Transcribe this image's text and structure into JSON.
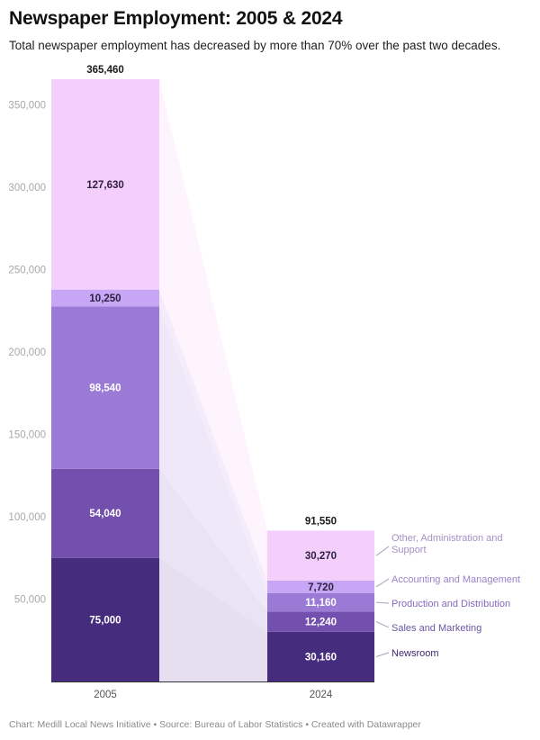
{
  "header": {
    "title": "Newspaper Employment: 2005 & 2024",
    "subtitle": "Total newspaper employment has decreased by more than 70% over the past two decades."
  },
  "footer": {
    "text": "Chart: Medill Local News Initiative • Source: Bureau of Labor Statistics • Created with Datawrapper"
  },
  "chart_data": {
    "type": "bar",
    "stacked": true,
    "title": "Newspaper Employment: 2005 & 2024",
    "subtitle": "Total newspaper employment has decreased by more than 70% over the past two decades.",
    "xlabel": "",
    "ylabel": "",
    "categories": [
      "2005",
      "2024"
    ],
    "totals": [
      365460,
      91550
    ],
    "total_labels": [
      "365,460",
      "91,550"
    ],
    "ylim": [
      0,
      370000
    ],
    "yticks": [
      50000,
      100000,
      150000,
      200000,
      250000,
      300000,
      350000
    ],
    "ytick_labels": [
      "50,000",
      "100,000",
      "150,000",
      "200,000",
      "250,000",
      "300,000",
      "350,000"
    ],
    "grid": false,
    "legend": "right-inline",
    "series": [
      {
        "name": "Newsroom",
        "values": [
          75000,
          30160
        ],
        "labels": [
          "75,000",
          "30,160"
        ],
        "color": "#452c7d",
        "text_color": "#ffffff",
        "legend_color": "#3f2a6e"
      },
      {
        "name": "Sales and Marketing",
        "values": [
          54040,
          12240
        ],
        "labels": [
          "54,040",
          "12,240"
        ],
        "color": "#7350ad",
        "text_color": "#ffffff",
        "legend_color": "#6a56a3"
      },
      {
        "name": "Production and Distribution",
        "values": [
          98540,
          11160
        ],
        "labels": [
          "98,540",
          "11,160"
        ],
        "color": "#9b7ad6",
        "text_color": "#ffffff",
        "legend_color": "#8469bd"
      },
      {
        "name": "Accounting and Management",
        "values": [
          10250,
          7720
        ],
        "labels": [
          "10,250",
          "7,720"
        ],
        "color": "#c7a6f5",
        "text_color": "#2e2140",
        "legend_color": "#9a82cc"
      },
      {
        "name": "Other, Administration and Support",
        "values": [
          127630,
          30270
        ],
        "labels": [
          "127,630",
          "30,270"
        ],
        "color": "#f5cffc",
        "text_color": "#2e2140",
        "legend_color": "#a590c4",
        "legend_lines": [
          "Other, Administration and",
          "Support"
        ]
      }
    ]
  }
}
